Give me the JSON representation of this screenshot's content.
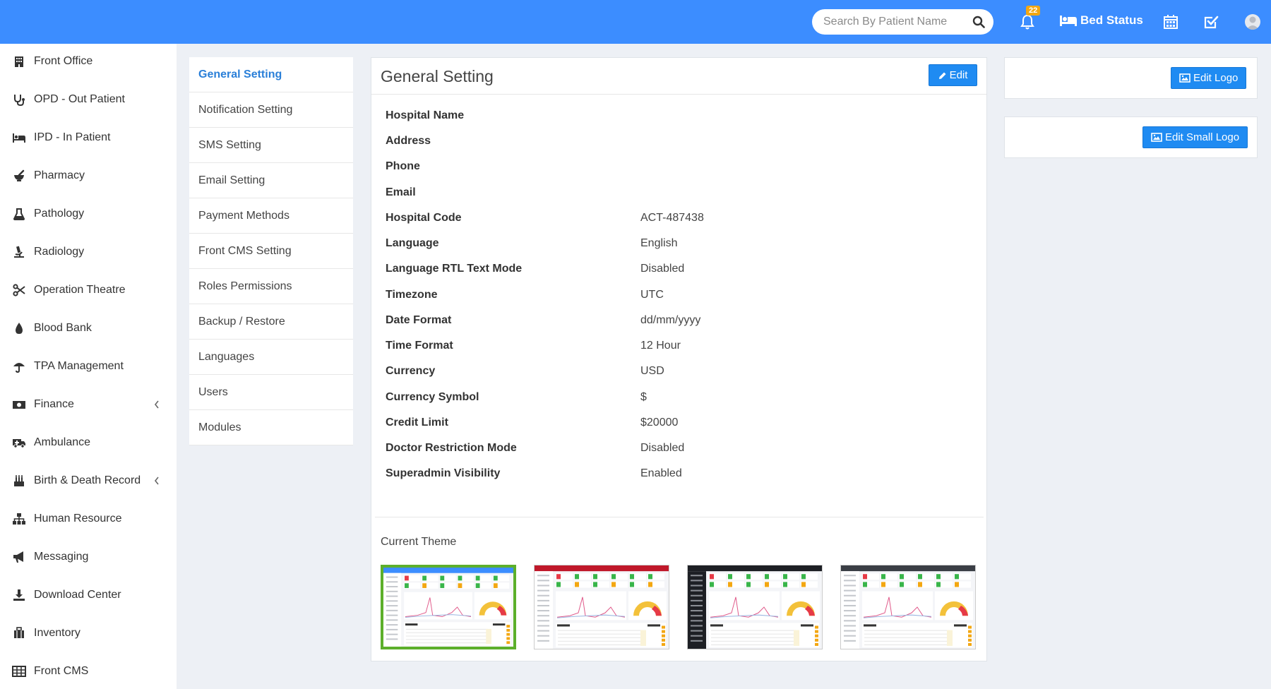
{
  "header": {
    "search_placeholder": "Search By Patient Name",
    "notification_count": "22",
    "bed_status_label": "Bed Status",
    "brand_color": "#3c8dff"
  },
  "sidebar": {
    "items": [
      {
        "label": "Front Office",
        "icon": "building-icon"
      },
      {
        "label": "OPD - Out Patient",
        "icon": "stethoscope-icon"
      },
      {
        "label": "IPD - In Patient",
        "icon": "bed-icon"
      },
      {
        "label": "Pharmacy",
        "icon": "mortar-pestle-icon"
      },
      {
        "label": "Pathology",
        "icon": "flask-icon"
      },
      {
        "label": "Radiology",
        "icon": "microscope-icon"
      },
      {
        "label": "Operation Theatre",
        "icon": "scissors-icon"
      },
      {
        "label": "Blood Bank",
        "icon": "drop-icon"
      },
      {
        "label": "TPA Management",
        "icon": "umbrella-icon"
      },
      {
        "label": "Finance",
        "icon": "money-icon",
        "has_submenu": true
      },
      {
        "label": "Ambulance",
        "icon": "ambulance-icon"
      },
      {
        "label": "Birth & Death Record",
        "icon": "birthday-cake-icon",
        "has_submenu": true
      },
      {
        "label": "Human Resource",
        "icon": "sitemap-icon"
      },
      {
        "label": "Messaging",
        "icon": "bullhorn-icon"
      },
      {
        "label": "Download Center",
        "icon": "download-icon"
      },
      {
        "label": "Inventory",
        "icon": "luggage-icon"
      },
      {
        "label": "Front CMS",
        "icon": "grid-icon"
      }
    ]
  },
  "settings_menu": {
    "items": [
      {
        "label": "General Setting",
        "active": true
      },
      {
        "label": "Notification Setting"
      },
      {
        "label": "SMS Setting"
      },
      {
        "label": "Email Setting"
      },
      {
        "label": "Payment Methods"
      },
      {
        "label": "Front CMS Setting"
      },
      {
        "label": "Roles Permissions"
      },
      {
        "label": "Backup / Restore"
      },
      {
        "label": "Languages"
      },
      {
        "label": "Users"
      },
      {
        "label": "Modules"
      }
    ]
  },
  "panel": {
    "title": "General Setting",
    "edit_label": "Edit",
    "fields": [
      {
        "label": "Hospital Name",
        "value": ""
      },
      {
        "label": "Address",
        "value": ""
      },
      {
        "label": "Phone",
        "value": ""
      },
      {
        "label": "Email",
        "value": ""
      },
      {
        "label": "Hospital Code",
        "value": "ACT-487438"
      },
      {
        "label": "Language",
        "value": "English"
      },
      {
        "label": "Language RTL Text Mode",
        "value": "Disabled"
      },
      {
        "label": "Timezone",
        "value": "UTC"
      },
      {
        "label": "Date Format",
        "value": "dd/mm/yyyy"
      },
      {
        "label": "Time Format",
        "value": "12 Hour"
      },
      {
        "label": "Currency",
        "value": "USD"
      },
      {
        "label": "Currency Symbol",
        "value": "$"
      },
      {
        "label": "Credit Limit",
        "value": "$20000"
      },
      {
        "label": "Doctor Restriction Mode",
        "value": "Disabled"
      },
      {
        "label": "Superadmin Visibility",
        "value": "Enabled"
      }
    ],
    "current_theme_label": "Current Theme",
    "themes": [
      {
        "name": "default",
        "header_color": "#3c8dff",
        "sidebar_color": "#ffffff",
        "selected": true
      },
      {
        "name": "red",
        "header_color": "#c0182a",
        "sidebar_color": "#ffffff",
        "selected": false
      },
      {
        "name": "dark",
        "header_color": "#1d1f24",
        "sidebar_color": "#1d1f24",
        "selected": false
      },
      {
        "name": "grey",
        "header_color": "#3a3e45",
        "sidebar_color": "#ffffff",
        "selected": false
      }
    ],
    "selected_theme_color": "#5caf2b"
  },
  "logos": {
    "edit_logo_label": "Edit Logo",
    "edit_small_logo_label": "Edit Small Logo"
  }
}
